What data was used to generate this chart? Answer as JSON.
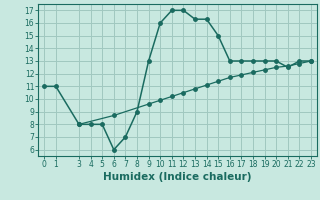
{
  "xlabel": "Humidex (Indice chaleur)",
  "bg_color": "#c8e8e0",
  "grid_color": "#a0c8c0",
  "line_color": "#1a6b60",
  "line1_x": [
    0,
    1,
    3,
    4,
    5,
    6,
    7,
    8,
    9,
    10,
    11,
    12,
    13,
    14,
    15,
    16,
    17,
    18,
    19,
    20,
    21,
    22,
    23
  ],
  "line1_y": [
    11,
    11,
    8,
    8,
    8,
    6,
    7,
    9,
    13,
    16,
    17,
    17,
    16.3,
    16.3,
    15,
    13,
    13,
    13,
    13,
    13,
    12.5,
    13,
    13
  ],
  "line2_x": [
    3,
    6,
    9,
    10,
    11,
    12,
    13,
    14,
    15,
    16,
    17,
    18,
    19,
    20,
    21,
    22,
    23
  ],
  "line2_y": [
    8,
    8.7,
    9.6,
    9.9,
    10.2,
    10.5,
    10.8,
    11.1,
    11.4,
    11.7,
    11.9,
    12.1,
    12.3,
    12.5,
    12.6,
    12.8,
    13.0
  ],
  "xlim": [
    -0.5,
    23.5
  ],
  "ylim": [
    5.5,
    17.5
  ],
  "yticks": [
    6,
    7,
    8,
    9,
    10,
    11,
    12,
    13,
    14,
    15,
    16,
    17
  ],
  "xticks": [
    0,
    1,
    3,
    4,
    5,
    6,
    7,
    8,
    9,
    10,
    11,
    12,
    13,
    14,
    15,
    16,
    17,
    18,
    19,
    20,
    21,
    22,
    23
  ],
  "tick_fontsize": 5.5,
  "xlabel_fontsize": 7.5,
  "marker_size": 2.5,
  "lw1": 1.1,
  "lw2": 0.9
}
